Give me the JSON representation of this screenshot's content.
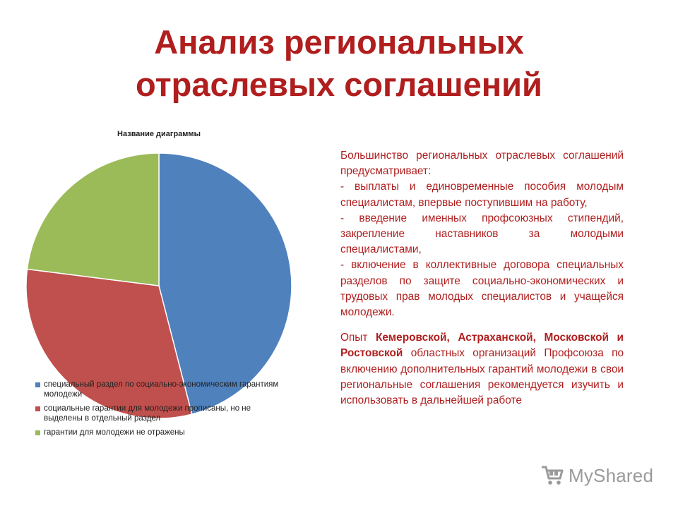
{
  "header": {
    "title_line1": "Анализ региональных",
    "title_line2": "отраслевых соглашений"
  },
  "chart_data": {
    "type": "pie",
    "title": "Название диаграммы",
    "series": [
      {
        "name": "специальный раздел по социально-экономическим гарантиям молодежи",
        "value": 46,
        "color": "#4f81bd"
      },
      {
        "name": "социальные гарантии для молодежи прописаны, но не выделены в отдельный раздел",
        "value": 31,
        "color": "#c0504d"
      },
      {
        "name": "гарантии для молодежи не отражены",
        "value": 23,
        "color": "#9bbb59"
      }
    ],
    "legend_position": "bottom-left"
  },
  "text": {
    "p1": "Большинство региональных отраслевых соглашений предусматривает:",
    "p2": "- выплаты и единовременные пособия молодым специалистам, впервые поступившим на работу,",
    "p3": "- введение именных профсоюзных стипендий, закрепление наставников за молодыми специалистами,",
    "p4": "- включение в коллективные договора специальных разделов по защите социально-экономических и трудовых прав молодых специалистов и учащейся молодежи.",
    "p5_start": "Опыт ",
    "p5_bold": "Кемеровской, Астраханской, Московской и Ростовской",
    "p5_end": " областных организаций Профсоюза по включению дополнительных гарантий молодежи в свои региональные соглашения рекомендуется изучить и использовать в дальнейшей работе"
  },
  "watermark": {
    "text": "MyShared",
    "icon": "cart-icon"
  }
}
